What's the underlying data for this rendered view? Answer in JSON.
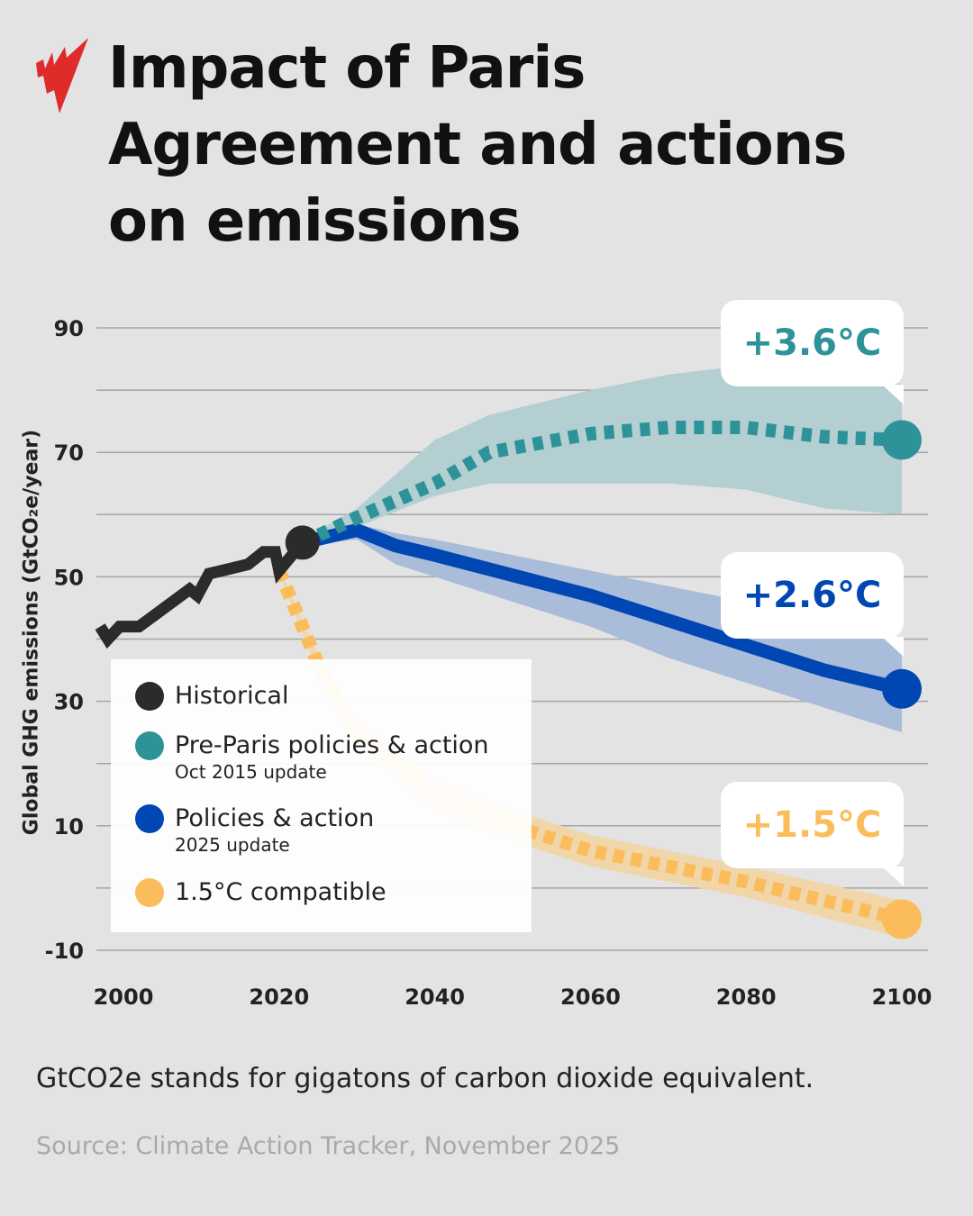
{
  "header": {
    "title": "Impact of Paris Agreement and actions on emissions",
    "logo_color": "#e02b2b"
  },
  "chart_data": {
    "type": "line",
    "title": "Impact of Paris Agreement and actions on emissions",
    "ylabel": "Global GHG emissions (GtCO₂e/year)",
    "xlabel": "",
    "xlim": [
      2000,
      2100
    ],
    "ylim": [
      -10,
      90
    ],
    "xticks": [
      2000,
      2020,
      2040,
      2060,
      2080,
      2100
    ],
    "yticks": [
      90,
      70,
      50,
      30,
      10,
      -10
    ],
    "grid": true,
    "legend_position": "bottom-left",
    "series": [
      {
        "name": "Historical",
        "color": "#2b2b2b",
        "style": "solid",
        "x": [
          1997,
          1998,
          1999.5,
          2002,
          2008.5,
          2009.5,
          2011,
          2016,
          2018,
          2019.5,
          2020,
          2023
        ],
        "y": [
          42,
          40,
          42,
          42,
          48,
          47,
          50.5,
          52,
          54,
          54,
          51,
          55.5
        ]
      },
      {
        "name": "Pre-Paris policies & action",
        "subtitle": "Oct 2015 update",
        "color": "#2e9399",
        "band_color": "#b3cfd2",
        "style": "dotted",
        "end_label": "+3.6°C",
        "x": [
          2023,
          2030,
          2040,
          2047,
          2060,
          2070,
          2080,
          2090,
          2100
        ],
        "y": [
          55.5,
          59.5,
          65,
          70,
          73,
          74,
          74,
          72.5,
          72
        ],
        "band_x": [
          2023,
          2030,
          2040,
          2047,
          2060,
          2070,
          2080,
          2090,
          2100
        ],
        "band_upper": [
          56,
          61,
          72,
          76,
          80,
          82.5,
          84,
          83,
          81
        ],
        "band_lower": [
          55,
          58,
          63,
          65,
          65,
          65,
          64,
          61,
          60
        ]
      },
      {
        "name": "Policies & action",
        "subtitle": "2025 update",
        "color": "#0047b3",
        "band_color": "#a9bcd9",
        "style": "solid",
        "end_label": "+2.6°C",
        "x": [
          2023,
          2030,
          2035,
          2040,
          2060,
          2080,
          2090,
          2100
        ],
        "y": [
          55.5,
          57.5,
          55,
          53.5,
          47,
          39,
          35,
          32
        ],
        "band_x": [
          2023,
          2030,
          2035,
          2040,
          2060,
          2070,
          2080,
          2090,
          2100
        ],
        "band_upper": [
          56,
          58.5,
          57,
          56,
          51,
          48.5,
          46,
          43,
          40
        ],
        "band_lower": [
          55,
          56,
          52,
          50,
          42,
          37,
          33,
          29,
          25
        ]
      },
      {
        "name": "1.5°C compatible",
        "color": "#fbbd5b",
        "band_color": "#f1d6aa",
        "style": "dotted",
        "end_label": "+1.5°C",
        "x": [
          2020,
          2025,
          2030,
          2040,
          2050,
          2060,
          2080,
          2100
        ],
        "y": [
          51,
          36,
          25,
          15,
          10,
          6,
          1,
          -5
        ],
        "band_x": [
          2020,
          2025,
          2030,
          2040,
          2050,
          2060,
          2080,
          2100
        ],
        "band_upper": [
          51.5,
          37.5,
          27,
          17.5,
          12.5,
          8.5,
          3.5,
          -2
        ],
        "band_lower": [
          50.5,
          34.5,
          23,
          12.5,
          7.5,
          3.5,
          -1.5,
          -8
        ]
      }
    ]
  },
  "legend": [
    {
      "label": "Historical",
      "sub": ""
    },
    {
      "label": "Pre-Paris policies & action",
      "sub": "Oct 2015 update"
    },
    {
      "label": "Policies & action",
      "sub": "2025 update"
    },
    {
      "label": "1.5°C compatible",
      "sub": ""
    }
  ],
  "callouts": [
    "+3.6°C",
    "+2.6°C",
    "+1.5°C"
  ],
  "footnote": "GtCO2e stands for gigatons of carbon dioxide equivalent.",
  "source": "Source:  Climate Action Tracker, November 2025"
}
